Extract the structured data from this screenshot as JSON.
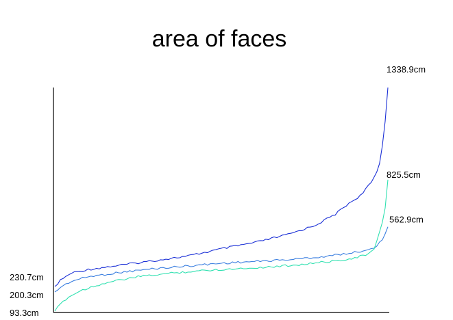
{
  "chart_data": {
    "type": "line",
    "title": "area of faces",
    "xlabel": "",
    "ylabel": "",
    "grid": false,
    "legend": "none",
    "ylim": [
      93.3,
      1338.9
    ],
    "unit": "cm",
    "series": [
      {
        "color": "#1a2fd6",
        "start_label": "230.7cm",
        "end_label": "1338.9cm",
        "x": [
          0,
          2,
          5,
          10,
          20,
          30,
          40,
          50,
          60,
          70,
          78,
          84,
          88,
          92,
          95,
          97,
          98,
          99,
          100
        ],
        "values": [
          230.7,
          270,
          305,
          325,
          350,
          375,
          400,
          440,
          475,
          520,
          570,
          630,
          690,
          740,
          810,
          880,
          960,
          1120,
          1338.9
        ]
      },
      {
        "color": "#3b7fe0",
        "start_label": "200.3cm",
        "end_label": "562.9cm",
        "x": [
          0,
          2,
          5,
          10,
          20,
          30,
          40,
          50,
          60,
          70,
          80,
          88,
          93,
          96,
          98,
          100
        ],
        "values": [
          200.3,
          230,
          260,
          285,
          310,
          330,
          345,
          360,
          370,
          380,
          395,
          415,
          430,
          450,
          480,
          562.9
        ]
      },
      {
        "color": "#2fe0b0",
        "start_label": "93.3cm",
        "end_label": "825.5cm",
        "x": [
          0,
          2,
          4,
          8,
          15,
          25,
          35,
          45,
          55,
          65,
          75,
          85,
          90,
          94,
          96,
          97,
          98,
          99,
          100
        ],
        "values": [
          93.3,
          140,
          170,
          210,
          250,
          285,
          305,
          320,
          330,
          340,
          355,
          375,
          390,
          410,
          440,
          500,
          560,
          640,
          825.5
        ]
      }
    ]
  }
}
